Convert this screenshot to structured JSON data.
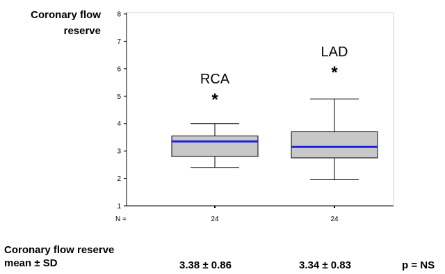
{
  "chart_data": {
    "type": "box",
    "ylabel_line1": "Coronary flow",
    "ylabel_line2": "reserve",
    "ylim": [
      1,
      8
    ],
    "yticks": [
      1,
      2,
      3,
      4,
      5,
      6,
      7,
      8
    ],
    "n_label": "N =",
    "categories": [
      "RCA",
      "LAD"
    ],
    "boxes": [
      {
        "name": "RCA",
        "whisker_low": 2.4,
        "q1": 2.8,
        "median": 3.35,
        "q3": 3.55,
        "whisker_high": 4.0,
        "outlier_marker": "*",
        "outlier_value": 4.9,
        "n": "24"
      },
      {
        "name": "LAD",
        "whisker_low": 1.95,
        "q1": 2.75,
        "median": 3.15,
        "q3": 3.7,
        "whisker_high": 4.9,
        "outlier_marker": "*",
        "outlier_value": 5.9,
        "n": "24"
      }
    ],
    "colors": {
      "box_fill": "#c8c8c8",
      "median": "#2020e0",
      "axis": "#000000"
    }
  },
  "stats": {
    "label_line1": "Coronary flow reserve",
    "label_line2": "mean ± SD",
    "rca_value": "3.38 ± 0.86",
    "lad_value": "3.34 ± 0.83",
    "p_value": "p = NS"
  }
}
